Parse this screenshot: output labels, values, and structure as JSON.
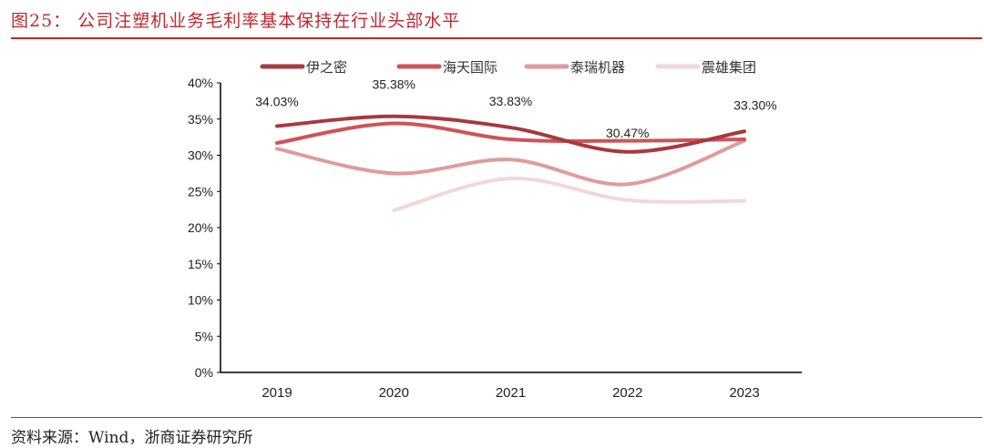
{
  "title": "图25：  公司注塑机业务毛利率基本保持在行业头部水平",
  "source": "资料来源：Wind，浙商证券研究所",
  "chart_data": {
    "type": "line",
    "categories": [
      "2019",
      "2020",
      "2021",
      "2022",
      "2023"
    ],
    "ylim": [
      0,
      40
    ],
    "yticks": [
      "0%",
      "5%",
      "10%",
      "15%",
      "20%",
      "25%",
      "30%",
      "35%",
      "40%"
    ],
    "legend_position": "top",
    "grid": false,
    "series": [
      {
        "name": "伊之密",
        "color": "#a63a3e",
        "values": [
          34.03,
          35.38,
          33.83,
          30.47,
          33.3
        ],
        "labels": [
          "34.03%",
          "35.38%",
          "33.83%",
          "30.47%",
          "33.30%"
        ]
      },
      {
        "name": "海天国际",
        "color": "#cf5358",
        "values": [
          31.7,
          34.4,
          32.2,
          32.0,
          32.2
        ]
      },
      {
        "name": "泰瑞机器",
        "color": "#e19a9b",
        "values": [
          30.9,
          27.5,
          29.4,
          26.0,
          32.0
        ]
      },
      {
        "name": "震雄集团",
        "color": "#f3d7d7",
        "values": [
          null,
          22.4,
          26.8,
          23.8,
          23.7
        ]
      }
    ]
  }
}
